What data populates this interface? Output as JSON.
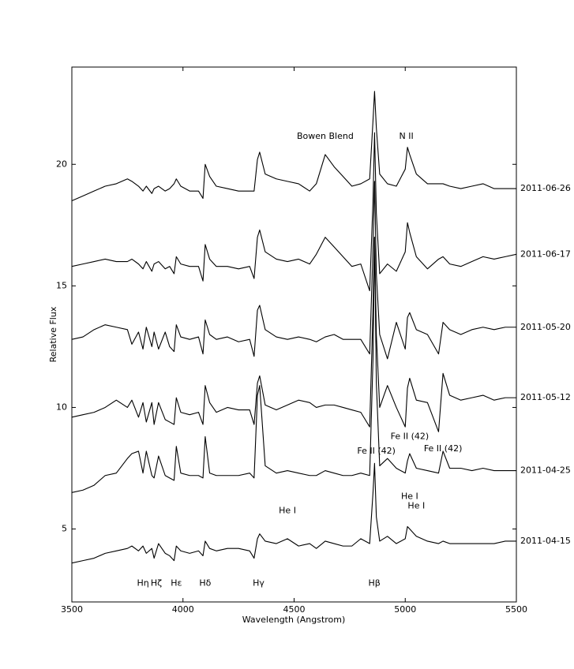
{
  "chart_data": {
    "type": "line",
    "x_label": "Wavelength (Angstrom)",
    "y_label": "Relative Flux",
    "xlim": [
      3500,
      5500
    ],
    "ylim": [
      2,
      24
    ],
    "xticks": [
      3500,
      4000,
      4500,
      5000,
      5500
    ],
    "yticks": [
      5,
      10,
      15,
      20
    ],
    "grid": false,
    "x": [
      3500,
      3550,
      3600,
      3650,
      3700,
      3750,
      3770,
      3800,
      3820,
      3835,
      3860,
      3870,
      3890,
      3920,
      3940,
      3960,
      3970,
      3990,
      4030,
      4070,
      4090,
      4100,
      4120,
      4150,
      4200,
      4250,
      4300,
      4320,
      4335,
      4345,
      4370,
      4420,
      4470,
      4520,
      4570,
      4600,
      4640,
      4680,
      4720,
      4760,
      4800,
      4840,
      4855,
      4862,
      4870,
      4885,
      4920,
      4960,
      5000,
      5010,
      5020,
      5050,
      5100,
      5150,
      5170,
      5200,
      5250,
      5300,
      5350,
      5400,
      5450,
      5500
    ],
    "series": [
      {
        "name": "2011-06-26",
        "color": "#000000",
        "values": [
          18.5,
          18.7,
          18.9,
          19.1,
          19.2,
          19.4,
          19.3,
          19.1,
          18.9,
          19.1,
          18.8,
          19.0,
          19.1,
          18.9,
          19.0,
          19.2,
          19.4,
          19.1,
          18.9,
          18.9,
          18.6,
          20.0,
          19.5,
          19.1,
          19.0,
          18.9,
          18.9,
          18.9,
          20.2,
          20.5,
          19.6,
          19.4,
          19.3,
          19.2,
          18.9,
          19.2,
          20.4,
          19.9,
          19.5,
          19.1,
          19.2,
          19.4,
          21.8,
          23.0,
          21.5,
          19.6,
          19.2,
          19.1,
          19.8,
          20.7,
          20.4,
          19.6,
          19.2,
          19.2,
          19.2,
          19.1,
          19.0,
          19.1,
          19.2,
          19.0,
          19.0,
          19.0
        ]
      },
      {
        "name": "2011-06-17",
        "color": "#000000",
        "values": [
          15.8,
          15.9,
          16.0,
          16.1,
          16.0,
          16.0,
          16.1,
          15.9,
          15.7,
          16.0,
          15.6,
          15.9,
          16.0,
          15.7,
          15.8,
          15.5,
          16.2,
          15.9,
          15.8,
          15.8,
          15.2,
          16.7,
          16.1,
          15.8,
          15.8,
          15.7,
          15.8,
          15.3,
          17.0,
          17.3,
          16.4,
          16.1,
          16.0,
          16.1,
          15.9,
          16.3,
          17.0,
          16.6,
          16.2,
          15.8,
          15.9,
          14.8,
          18.5,
          21.3,
          18.0,
          15.5,
          15.9,
          15.6,
          16.4,
          17.6,
          17.2,
          16.2,
          15.7,
          16.1,
          16.2,
          15.9,
          15.8,
          16.0,
          16.2,
          16.1,
          16.2,
          16.3
        ]
      },
      {
        "name": "2011-05-20",
        "color": "#000000",
        "values": [
          12.8,
          12.9,
          13.2,
          13.4,
          13.3,
          13.2,
          12.6,
          13.1,
          12.4,
          13.3,
          12.5,
          13.1,
          12.4,
          13.1,
          12.5,
          12.3,
          13.4,
          12.9,
          12.8,
          12.9,
          12.2,
          13.6,
          13.0,
          12.8,
          12.9,
          12.7,
          12.8,
          12.1,
          14.0,
          14.2,
          13.2,
          12.9,
          12.8,
          12.9,
          12.8,
          12.7,
          12.9,
          13.0,
          12.8,
          12.8,
          12.8,
          12.2,
          16.5,
          19.3,
          15.5,
          13.0,
          12.0,
          13.5,
          12.4,
          13.7,
          13.9,
          13.2,
          13.0,
          12.2,
          13.5,
          13.2,
          13.0,
          13.2,
          13.3,
          13.2,
          13.3,
          13.3
        ]
      },
      {
        "name": "2011-05-12",
        "color": "#000000",
        "values": [
          9.6,
          9.7,
          9.8,
          10.0,
          10.3,
          10.0,
          10.3,
          9.6,
          10.2,
          9.4,
          10.2,
          9.3,
          10.2,
          9.5,
          9.4,
          9.3,
          10.4,
          9.8,
          9.7,
          9.8,
          9.3,
          10.9,
          10.2,
          9.8,
          10.0,
          9.9,
          9.9,
          9.3,
          11.0,
          11.3,
          10.1,
          9.9,
          10.1,
          10.3,
          10.2,
          10.0,
          10.1,
          10.1,
          10.0,
          9.9,
          9.8,
          9.2,
          14.0,
          17.0,
          13.0,
          10.0,
          10.9,
          10.0,
          9.2,
          10.8,
          11.2,
          10.3,
          10.2,
          9.0,
          11.4,
          10.5,
          10.3,
          10.4,
          10.5,
          10.3,
          10.4,
          10.4
        ]
      },
      {
        "name": "2011-04-25",
        "color": "#000000",
        "values": [
          6.5,
          6.6,
          6.8,
          7.2,
          7.3,
          7.9,
          8.1,
          8.2,
          7.3,
          8.2,
          7.2,
          7.1,
          8.0,
          7.2,
          7.1,
          7.0,
          8.4,
          7.3,
          7.2,
          7.2,
          7.1,
          8.8,
          7.3,
          7.2,
          7.2,
          7.2,
          7.3,
          7.1,
          10.5,
          10.9,
          7.6,
          7.3,
          7.4,
          7.3,
          7.2,
          7.2,
          7.4,
          7.3,
          7.2,
          7.2,
          7.3,
          7.2,
          12.0,
          17.0,
          11.0,
          7.6,
          7.9,
          7.5,
          7.3,
          7.8,
          8.1,
          7.5,
          7.4,
          7.3,
          8.2,
          7.5,
          7.5,
          7.4,
          7.5,
          7.4,
          7.4,
          7.4
        ]
      },
      {
        "name": "2011-04-15",
        "color": "#000000",
        "values": [
          3.6,
          3.7,
          3.8,
          4.0,
          4.1,
          4.2,
          4.3,
          4.1,
          4.3,
          4.0,
          4.2,
          3.8,
          4.4,
          4.0,
          3.9,
          3.7,
          4.3,
          4.1,
          4.0,
          4.1,
          3.9,
          4.5,
          4.2,
          4.1,
          4.2,
          4.2,
          4.1,
          3.8,
          4.6,
          4.8,
          4.5,
          4.4,
          4.6,
          4.3,
          4.4,
          4.2,
          4.5,
          4.4,
          4.3,
          4.3,
          4.6,
          4.4,
          6.5,
          7.7,
          5.5,
          4.5,
          4.7,
          4.4,
          4.6,
          5.1,
          5.0,
          4.7,
          4.5,
          4.4,
          4.5,
          4.4,
          4.4,
          4.4,
          4.4,
          4.4,
          4.5,
          4.5
        ]
      }
    ],
    "annotations": [
      {
        "text": "Bowen Blend",
        "x": 4640,
        "y": 21.15
      },
      {
        "text": "N II",
        "x": 5005,
        "y": 21.15
      },
      {
        "text": "Fe II (42)",
        "x": 5020,
        "y": 8.8
      },
      {
        "text": "Fe II (42)",
        "x": 4870,
        "y": 8.2
      },
      {
        "text": "Fe II (42)",
        "x": 5170,
        "y": 8.3
      },
      {
        "text": "He I",
        "x": 4470,
        "y": 5.75
      },
      {
        "text": "He I",
        "x": 5020,
        "y": 6.33
      },
      {
        "text": "He I",
        "x": 5050,
        "y": 5.94
      },
      {
        "text": "Hη",
        "x": 3820,
        "y": 2.76
      },
      {
        "text": "Hζ",
        "x": 3880,
        "y": 2.76
      },
      {
        "text": "Hε",
        "x": 3970,
        "y": 2.76
      },
      {
        "text": "Hδ",
        "x": 4100,
        "y": 2.76
      },
      {
        "text": "Hγ",
        "x": 4340,
        "y": 2.76
      },
      {
        "text": "Hβ",
        "x": 4861,
        "y": 2.76
      }
    ]
  }
}
